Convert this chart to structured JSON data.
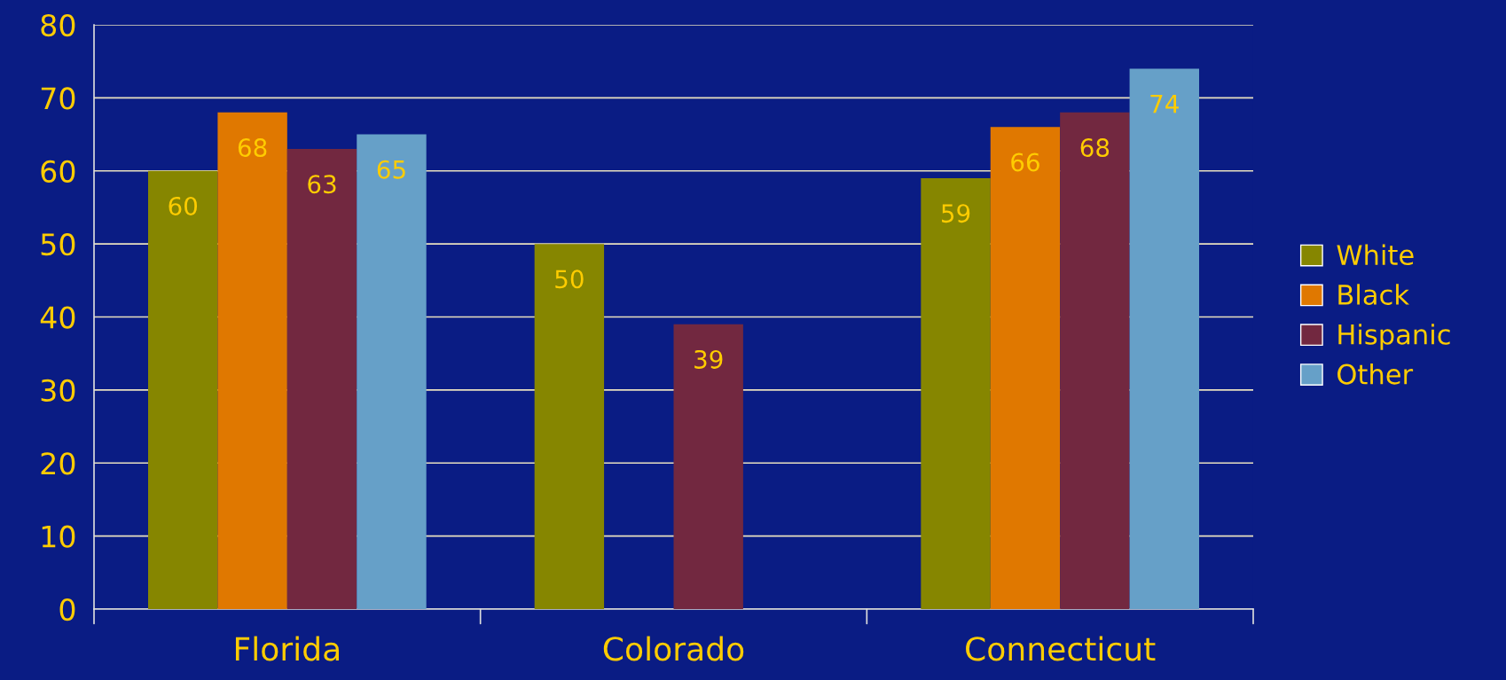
{
  "chart_data": {
    "type": "bar",
    "categories": [
      "Florida",
      "Colorado",
      "Connecticut"
    ],
    "series": [
      {
        "name": "White",
        "color": "#868600",
        "values": [
          60,
          50,
          59
        ]
      },
      {
        "name": "Black",
        "color": "#e07800",
        "values": [
          68,
          null,
          66
        ]
      },
      {
        "name": "Hispanic",
        "color": "#722840",
        "values": [
          63,
          39,
          68
        ]
      },
      {
        "name": "Other",
        "color": "#66a0c8",
        "values": [
          65,
          null,
          74
        ]
      }
    ],
    "ylim": [
      0,
      80
    ],
    "yticks": [
      0,
      10,
      20,
      30,
      40,
      50,
      60,
      70,
      80
    ],
    "grid": "y",
    "legend": "right",
    "data_labels": true
  }
}
